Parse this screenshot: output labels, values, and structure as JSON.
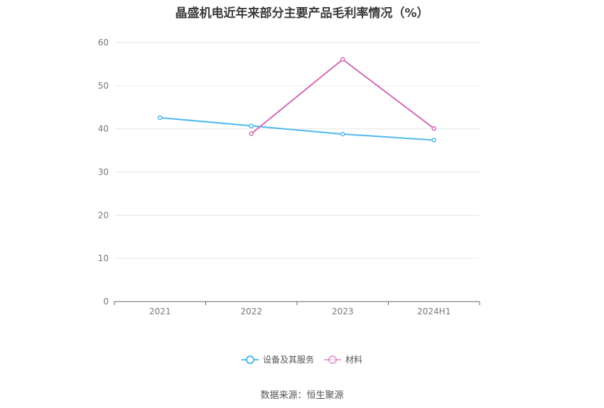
{
  "title": "晶盛机电近年来部分主要产品毛利率情况（%）",
  "source": "数据来源：恒生聚源",
  "chart_data": {
    "type": "line",
    "title": "晶盛机电近年来部分主要产品毛利率情况（%）",
    "categories": [
      "2021",
      "2022",
      "2023",
      "2024H1"
    ],
    "ylim": [
      0,
      60
    ],
    "yticks": [
      0,
      10,
      20,
      30,
      40,
      50,
      60
    ],
    "grid": true,
    "legend_position": "bottom",
    "series": [
      {
        "name": "设备及其服务",
        "color": "#4db8ec",
        "values": [
          42.6,
          40.7,
          38.8,
          37.4
        ]
      },
      {
        "name": "材料",
        "color": "#d46ab4",
        "values": [
          null,
          38.9,
          56.1,
          40.1
        ]
      }
    ]
  }
}
